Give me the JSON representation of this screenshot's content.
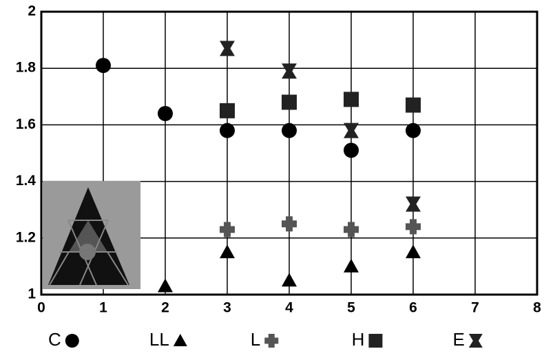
{
  "chart_data": {
    "type": "scatter",
    "xlim": [
      0,
      8
    ],
    "xticks": [
      0,
      1,
      2,
      3,
      4,
      5,
      6,
      7,
      8
    ],
    "ylim": [
      1,
      2
    ],
    "yticks": [
      1,
      1.2,
      1.4,
      1.6,
      1.8,
      2
    ],
    "grid": true,
    "legend": "bottom",
    "series": [
      {
        "name": "C",
        "color": "#000000",
        "marker": "circle",
        "x": [
          1,
          2,
          3,
          4,
          5,
          6
        ],
        "values": [
          1.81,
          1.64,
          1.58,
          1.58,
          1.51,
          1.58
        ]
      },
      {
        "name": "LL",
        "color": "#000000",
        "marker": "triangle",
        "x": [
          2,
          3,
          4,
          5,
          6
        ],
        "values": [
          1.03,
          1.15,
          1.05,
          1.1,
          1.15
        ]
      },
      {
        "name": "L",
        "color": "#555555",
        "marker": "cross",
        "x": [
          3,
          4,
          5,
          6
        ],
        "values": [
          1.23,
          1.25,
          1.23,
          1.24
        ]
      },
      {
        "name": "H",
        "color": "#222222",
        "marker": "square",
        "x": [
          3,
          4,
          5,
          6
        ],
        "values": [
          1.65,
          1.68,
          1.69,
          1.67
        ]
      },
      {
        "name": "E",
        "color": "#222222",
        "marker": "bowtie",
        "x": [
          3,
          4,
          5,
          6
        ],
        "values": [
          1.87,
          1.79,
          1.58,
          1.32
        ]
      }
    ]
  }
}
